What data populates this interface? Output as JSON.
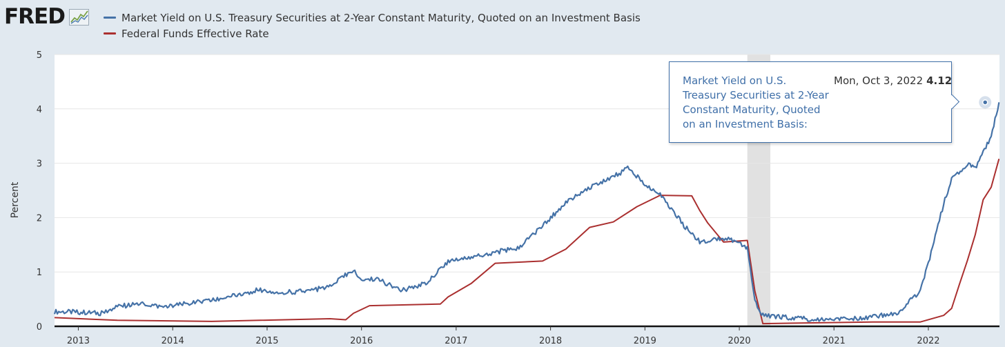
{
  "brand": {
    "name": "FRED"
  },
  "chart_data": {
    "type": "line",
    "ylabel": "Percent",
    "ylim": [
      0,
      5
    ],
    "yticks": [
      "0",
      "1",
      "2",
      "3",
      "4",
      "5"
    ],
    "xticks": [
      "2013",
      "2014",
      "2015",
      "2016",
      "2017",
      "2018",
      "2019",
      "2020",
      "2021",
      "2022"
    ],
    "xrange": [
      "2012-10-01",
      "2022-10-03"
    ],
    "recession": [
      "2020-02-01",
      "2020-04-30"
    ],
    "grid": true,
    "legend_position": "top-left",
    "series": [
      {
        "name": "Market Yield on U.S. Treasury Securities at 2-Year Constant Maturity, Quoted on an Investment Basis",
        "color": "#4572a7",
        "x": [
          "2012-10",
          "2013-01",
          "2013-04",
          "2013-06",
          "2013-09",
          "2013-12",
          "2014-03",
          "2014-06",
          "2014-09",
          "2014-12",
          "2015-03",
          "2015-06",
          "2015-09",
          "2015-12",
          "2016-01",
          "2016-03",
          "2016-06",
          "2016-09",
          "2016-12",
          "2017-03",
          "2017-06",
          "2017-09",
          "2017-12",
          "2018-03",
          "2018-06",
          "2018-09",
          "2018-11",
          "2019-01",
          "2019-03",
          "2019-06",
          "2019-08",
          "2019-10",
          "2019-12",
          "2020-02",
          "2020-03",
          "2020-04",
          "2020-06",
          "2020-09",
          "2020-12",
          "2021-03",
          "2021-06",
          "2021-09",
          "2021-12",
          "2022-01",
          "2022-03",
          "2022-04",
          "2022-06",
          "2022-07",
          "2022-09",
          "2022-10"
        ],
        "values": [
          0.27,
          0.26,
          0.24,
          0.36,
          0.42,
          0.35,
          0.42,
          0.47,
          0.58,
          0.67,
          0.62,
          0.65,
          0.72,
          1.05,
          0.85,
          0.88,
          0.65,
          0.78,
          1.2,
          1.28,
          1.36,
          1.45,
          1.85,
          2.27,
          2.55,
          2.75,
          2.92,
          2.6,
          2.45,
          1.85,
          1.55,
          1.62,
          1.6,
          1.45,
          0.45,
          0.2,
          0.18,
          0.14,
          0.12,
          0.14,
          0.18,
          0.24,
          0.65,
          1.15,
          2.25,
          2.7,
          3.0,
          2.9,
          3.5,
          4.12
        ]
      },
      {
        "name": "Federal Funds Effective Rate",
        "color": "#aa2f2f",
        "x": [
          "2012-10",
          "2013-06",
          "2014-06",
          "2015-09",
          "2015-11",
          "2015-12",
          "2016-02",
          "2016-11",
          "2016-12",
          "2017-03",
          "2017-06",
          "2017-12",
          "2018-03",
          "2018-06",
          "2018-09",
          "2018-12",
          "2019-03",
          "2019-07",
          "2019-08",
          "2019-09",
          "2019-11",
          "2020-02",
          "2020-03",
          "2020-04",
          "2021-06",
          "2021-12",
          "2022-03",
          "2022-04",
          "2022-05",
          "2022-06",
          "2022-07",
          "2022-08",
          "2022-09",
          "2022-10"
        ],
        "values": [
          0.16,
          0.11,
          0.09,
          0.14,
          0.12,
          0.24,
          0.38,
          0.41,
          0.54,
          0.79,
          1.16,
          1.2,
          1.42,
          1.82,
          1.92,
          2.2,
          2.41,
          2.4,
          2.13,
          1.9,
          1.55,
          1.58,
          0.65,
          0.05,
          0.08,
          0.08,
          0.2,
          0.33,
          0.77,
          1.21,
          1.68,
          2.33,
          2.56,
          3.08
        ]
      }
    ]
  },
  "tooltip": {
    "series_name": "Market Yield on U.S. Treasury Securities at 2-Year Constant Maturity, Quoted on an Investment Basis:",
    "date": "Mon, Oct 3, 2022",
    "value": "4.12"
  }
}
